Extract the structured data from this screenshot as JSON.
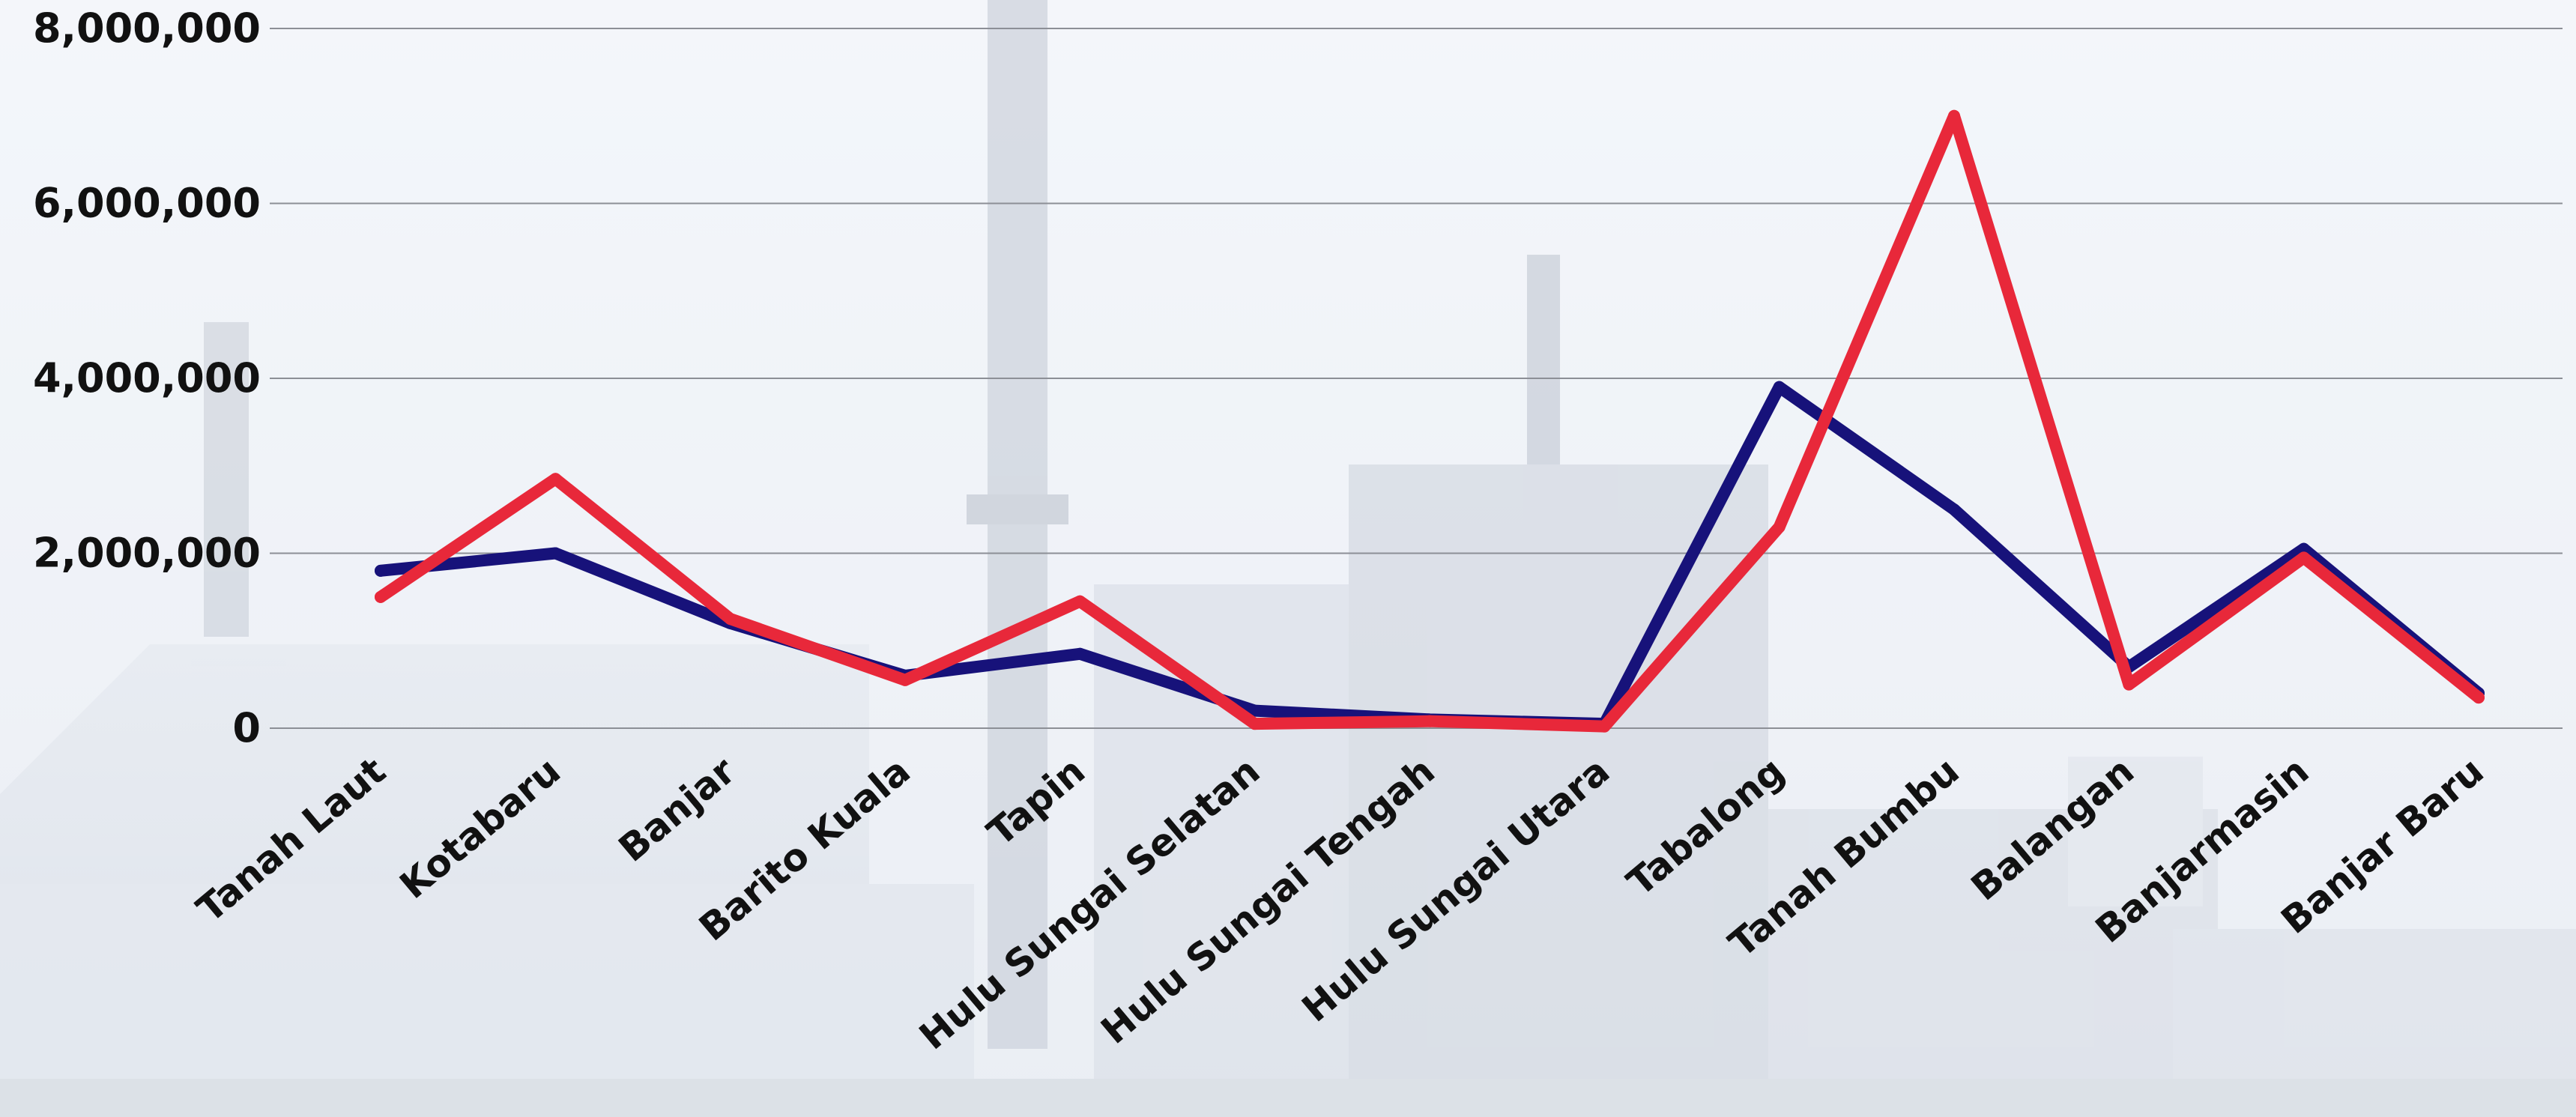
{
  "chart_data": {
    "type": "line",
    "categories": [
      "Tanah Laut",
      "Kotabaru",
      "Banjar",
      "Barito Kuala",
      "Tapin",
      "Hulu Sungai Selatan",
      "Hulu Sungai Tengah",
      "Hulu Sungai Utara",
      "Tabalong",
      "Tanah Bumbu",
      "Balangan",
      "Banjarmasin",
      "Banjar Baru"
    ],
    "series": [
      {
        "color": "#17127a",
        "values": [
          1800000,
          2000000,
          1200000,
          600000,
          850000,
          200000,
          100000,
          50000,
          3900000,
          2500000,
          700000,
          2050000,
          400000
        ]
      },
      {
        "color": "#e8283a",
        "values": [
          1500000,
          2850000,
          1250000,
          550000,
          1450000,
          50000,
          80000,
          20000,
          2300000,
          7000000,
          500000,
          1950000,
          350000
        ]
      }
    ],
    "yticks": [
      {
        "value": 0,
        "label": "0"
      },
      {
        "value": 2000000,
        "label": "2,000,000"
      },
      {
        "value": 4000000,
        "label": "4,000,000"
      },
      {
        "value": 6000000,
        "label": "6,000,000"
      },
      {
        "value": 8000000,
        "label": "8,000,000"
      }
    ],
    "ylim": [
      0,
      8000000
    ],
    "grid": true,
    "legend": "none",
    "xlabel": "",
    "ylabel": "",
    "background": "photo-of-industrial-plant"
  }
}
